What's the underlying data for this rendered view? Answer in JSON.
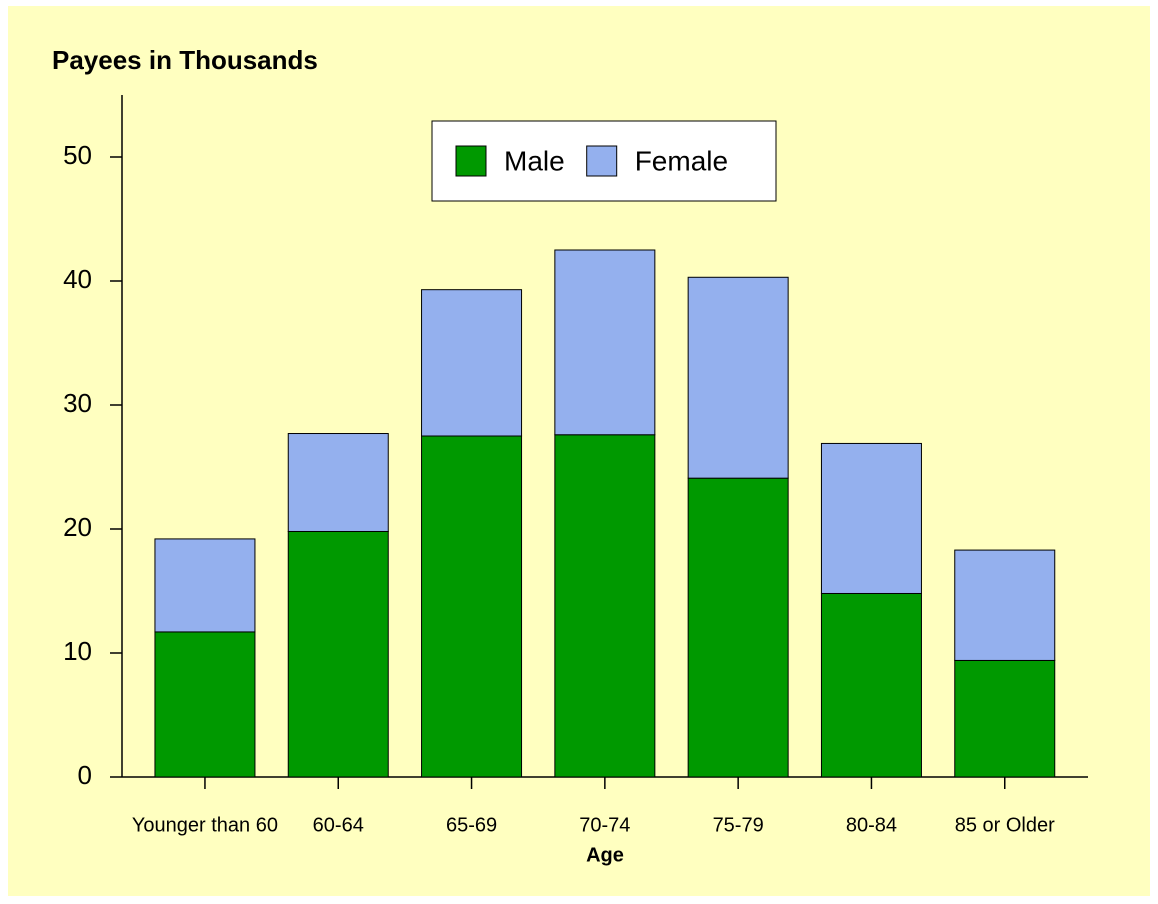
{
  "chart_data": {
    "type": "stacked_bar",
    "title": "Payees in Thousands",
    "x_label": "Age",
    "categories": [
      "Younger than 60",
      "60-64",
      "65-69",
      "70-74",
      "75-79",
      "80-84",
      "85 or Older"
    ],
    "series": [
      {
        "name": "Male",
        "color": "#009900",
        "values": [
          11.7,
          19.8,
          27.5,
          27.6,
          24.1,
          14.8,
          9.4
        ]
      },
      {
        "name": "Female",
        "color": "#94b0ee",
        "values": [
          7.5,
          7.9,
          11.8,
          14.9,
          16.2,
          12.1,
          8.9
        ]
      }
    ],
    "ylim": [
      0,
      55
    ],
    "yticks": [
      0,
      10,
      20,
      30,
      40,
      50
    ],
    "legend": "top"
  }
}
